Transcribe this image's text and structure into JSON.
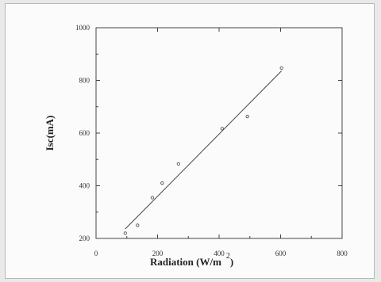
{
  "chart_data": {
    "type": "scatter",
    "title": "",
    "xlabel": "Radiation (W/m",
    "xlabel_superscript": "2",
    "xlabel_suffix": ")",
    "ylabel": "Isc(mA)",
    "xlim": [
      0,
      800
    ],
    "ylim": [
      200,
      1000
    ],
    "x_ticks": [
      0,
      200,
      400,
      600,
      800
    ],
    "y_ticks": [
      200,
      400,
      600,
      800,
      1000
    ],
    "grid": false,
    "series": [
      {
        "points": [
          {
            "x": 95,
            "y": 220
          },
          {
            "x": 135,
            "y": 250
          },
          {
            "x": 183,
            "y": 355
          },
          {
            "x": 215,
            "y": 410
          },
          {
            "x": 268,
            "y": 483
          },
          {
            "x": 410,
            "y": 617
          },
          {
            "x": 492,
            "y": 663
          },
          {
            "x": 603,
            "y": 847
          }
        ]
      }
    ],
    "fit_line": {
      "x": [
        95,
        603
      ],
      "y": [
        236,
        836
      ]
    },
    "colors": {
      "axis": "#444444",
      "marker": "#555555",
      "line": "#444444"
    }
  }
}
